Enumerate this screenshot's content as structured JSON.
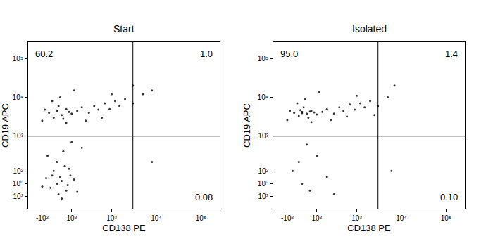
{
  "chart_data": [
    {
      "type": "scatter",
      "title": "Start",
      "x_label": "CD138 PE",
      "y_label": "CD19 APC",
      "color": "#000000",
      "marker": "circle",
      "xlim": [
        -250,
        262144
      ],
      "ylim": [
        -250,
        262144
      ],
      "xticks": [
        {
          "value": -100,
          "label": "-10²"
        },
        {
          "value": 100,
          "label": "10²"
        },
        {
          "value": 1000,
          "label": "10³"
        },
        {
          "value": 10000,
          "label": "10⁴"
        },
        {
          "value": 100000,
          "label": "10⁵"
        }
      ],
      "yticks": [
        {
          "value": -100,
          "label": "-10²"
        },
        {
          "value": 1,
          "label": "10⁰"
        },
        {
          "value": 100,
          "label": "10²"
        },
        {
          "value": 1000,
          "label": "10³"
        },
        {
          "value": 10000,
          "label": "10⁴"
        },
        {
          "value": 100000,
          "label": "10⁵"
        }
      ],
      "quadrant_x": 3000,
      "quadrant_y": 1000,
      "quadrants": {
        "upper_left": 60.2,
        "upper_right": {
          "value": 1.0,
          "label": "1.0"
        },
        "lower_right": 0.08
      },
      "x": [
        -50,
        0,
        30,
        60,
        -20,
        80,
        10,
        -80,
        40,
        100,
        150,
        200,
        300,
        400,
        500,
        700,
        900,
        1200,
        1500,
        2000,
        3000,
        5000,
        -30,
        20,
        120,
        250,
        600,
        60,
        -100,
        1000,
        3000,
        8000,
        -40,
        0,
        30,
        60,
        -70,
        90,
        10,
        -20,
        50,
        120,
        -100,
        20,
        70,
        150,
        0,
        40,
        -60,
        100,
        200,
        30,
        -30,
        80,
        8000
      ],
      "values": [
        4000,
        4500,
        3500,
        5000,
        3000,
        4200,
        6000,
        4800,
        2800,
        3800,
        4500,
        5500,
        4000,
        6000,
        4800,
        7000,
        5000,
        8000,
        6000,
        9000,
        7000,
        12000,
        8000,
        10000,
        15000,
        2500,
        3000,
        2200,
        2500,
        12000,
        20000,
        15000,
        -30,
        0,
        20,
        -50,
        40,
        60,
        -80,
        100,
        150,
        30,
        -20,
        50,
        -10,
        -60,
        200,
        400,
        300,
        700,
        500,
        -120,
        60,
        120,
        200
      ]
    },
    {
      "type": "scatter",
      "title": "Isolated",
      "x_label": "CD138 PE",
      "y_label": "CD19 APC",
      "color": "#000000",
      "marker": "circle",
      "xlim": [
        -250,
        262144
      ],
      "ylim": [
        -250,
        262144
      ],
      "xticks": [
        {
          "value": -100,
          "label": "-10²"
        },
        {
          "value": 100,
          "label": "10²"
        },
        {
          "value": 1000,
          "label": "10³"
        },
        {
          "value": 10000,
          "label": "10⁴"
        },
        {
          "value": 100000,
          "label": "10⁵"
        }
      ],
      "yticks": [
        {
          "value": -100,
          "label": "-10²"
        },
        {
          "value": 1,
          "label": "10⁰"
        },
        {
          "value": 100,
          "label": "10²"
        },
        {
          "value": 1000,
          "label": "10³"
        },
        {
          "value": 10000,
          "label": "10⁴"
        },
        {
          "value": 100000,
          "label": "10⁵"
        }
      ],
      "quadrant_x": 3000,
      "quadrant_y": 1000,
      "quadrants": {
        "upper_left": {
          "value": 95.0,
          "label": "95.0"
        },
        "upper_right": 1.4,
        "lower_right": {
          "value": 0.1,
          "label": "0.10"
        }
      },
      "x": [
        -50,
        0,
        30,
        60,
        -20,
        80,
        10,
        -80,
        40,
        100,
        150,
        200,
        300,
        400,
        500,
        700,
        900,
        1200,
        1500,
        2000,
        3000,
        5000,
        -30,
        20,
        120,
        250,
        600,
        60,
        -100,
        1000,
        2500,
        7000,
        0,
        50,
        -10,
        0,
        50,
        -60,
        100,
        200,
        30,
        300,
        -20,
        6000
      ],
      "values": [
        4000,
        4200,
        3800,
        4500,
        3300,
        4100,
        5500,
        4500,
        3000,
        3600,
        4200,
        5000,
        3800,
        5500,
        4500,
        6500,
        4800,
        7000,
        5500,
        8000,
        6000,
        10000,
        7000,
        9000,
        14000,
        2600,
        3200,
        2300,
        2600,
        11000,
        3500,
        20000,
        3900,
        4300,
        4700,
        0,
        -50,
        100,
        300,
        50,
        600,
        -80,
        200,
        100
      ]
    }
  ]
}
